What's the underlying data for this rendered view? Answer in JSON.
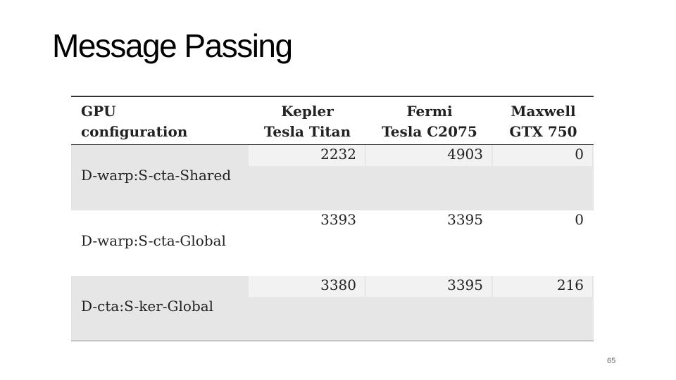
{
  "title": "Message Passing",
  "table": {
    "header": [
      [
        "GPU",
        "configuration"
      ],
      [
        "Kepler",
        "Tesla Titan"
      ],
      [
        "Fermi",
        "Tesla C2075"
      ],
      [
        "Maxwell",
        "GTX 750"
      ]
    ],
    "rows": [
      [
        "D-warp:S-cta-Shared",
        2232,
        4903,
        0
      ],
      [
        "D-warp:S-cta-Global",
        3393,
        3395,
        0
      ],
      [
        "D-cta:S-ker-Global",
        3380,
        3395,
        216
      ]
    ]
  },
  "page_number": "65"
}
